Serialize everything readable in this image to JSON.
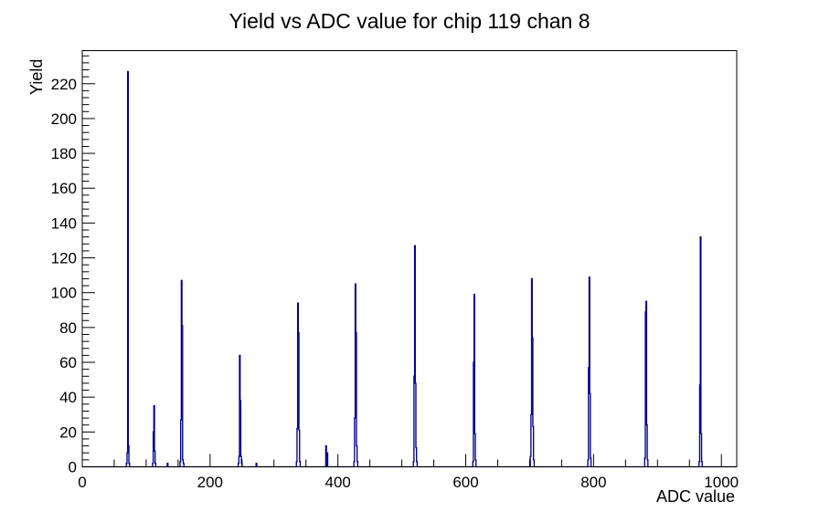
{
  "chart_data": {
    "type": "bar",
    "title": "Yield vs ADC value for chip 119 chan 8",
    "xlabel": "ADC value",
    "ylabel": "Yield",
    "grid": false,
    "legend": null,
    "colors": {
      "line": "#00008b",
      "axis": "#000000",
      "background": "#ffffff",
      "text": "#000000"
    },
    "x_axis": {
      "title": "ADC value",
      "range": [
        0,
        1024
      ],
      "major_ticks": [
        0,
        200,
        400,
        600,
        800,
        1000
      ],
      "major_labels": [
        "0",
        "200",
        "400",
        "600",
        "800",
        "1000"
      ],
      "minor_step": 50
    },
    "y_axis": {
      "title": "Yield",
      "range": [
        0,
        239
      ],
      "major_step": 20,
      "major_labels": [
        "0",
        "20",
        "40",
        "60",
        "80",
        "100",
        "120",
        "140",
        "160",
        "180",
        "200",
        "220"
      ],
      "minor_step": 4
    },
    "bins": [
      [
        69,
        2
      ],
      [
        70,
        8
      ],
      [
        71,
        227
      ],
      [
        72,
        12
      ],
      [
        73,
        2
      ],
      [
        110,
        2
      ],
      [
        111,
        20
      ],
      [
        112,
        35
      ],
      [
        113,
        9
      ],
      [
        114,
        2
      ],
      [
        133,
        2
      ],
      [
        153,
        3
      ],
      [
        154,
        27
      ],
      [
        155,
        107
      ],
      [
        156,
        81
      ],
      [
        157,
        4
      ],
      [
        158,
        2
      ],
      [
        244,
        2
      ],
      [
        245,
        6
      ],
      [
        246,
        64
      ],
      [
        247,
        38
      ],
      [
        248,
        6
      ],
      [
        249,
        2
      ],
      [
        272,
        2
      ],
      [
        335,
        3
      ],
      [
        336,
        22
      ],
      [
        337,
        94
      ],
      [
        338,
        77
      ],
      [
        339,
        21
      ],
      [
        340,
        3
      ],
      [
        381,
        12
      ],
      [
        383,
        8
      ],
      [
        425,
        3
      ],
      [
        426,
        28
      ],
      [
        427,
        105
      ],
      [
        428,
        77
      ],
      [
        429,
        12
      ],
      [
        430,
        3
      ],
      [
        518,
        3
      ],
      [
        519,
        52
      ],
      [
        520,
        127
      ],
      [
        521,
        48
      ],
      [
        522,
        11
      ],
      [
        523,
        3
      ],
      [
        611,
        3
      ],
      [
        612,
        60
      ],
      [
        613,
        99
      ],
      [
        614,
        19
      ],
      [
        615,
        4
      ],
      [
        701,
        6
      ],
      [
        702,
        30
      ],
      [
        703,
        108
      ],
      [
        704,
        74
      ],
      [
        705,
        23
      ],
      [
        706,
        4
      ],
      [
        791,
        4
      ],
      [
        792,
        57
      ],
      [
        793,
        109
      ],
      [
        794,
        42
      ],
      [
        795,
        5
      ],
      [
        880,
        5
      ],
      [
        881,
        89
      ],
      [
        882,
        95
      ],
      [
        883,
        24
      ],
      [
        884,
        4
      ],
      [
        965,
        3
      ],
      [
        966,
        47
      ],
      [
        967,
        132
      ],
      [
        968,
        19
      ],
      [
        969,
        3
      ]
    ],
    "peak_summary": [
      {
        "adc": 71,
        "yield": 227
      },
      {
        "adc": 112,
        "yield": 35
      },
      {
        "adc": 155,
        "yield": 107
      },
      {
        "adc": 246,
        "yield": 64
      },
      {
        "adc": 337,
        "yield": 94
      },
      {
        "adc": 381,
        "yield": 12
      },
      {
        "adc": 427,
        "yield": 105
      },
      {
        "adc": 520,
        "yield": 127
      },
      {
        "adc": 613,
        "yield": 99
      },
      {
        "adc": 703,
        "yield": 108
      },
      {
        "adc": 793,
        "yield": 109
      },
      {
        "adc": 882,
        "yield": 95
      },
      {
        "adc": 967,
        "yield": 132
      }
    ]
  }
}
